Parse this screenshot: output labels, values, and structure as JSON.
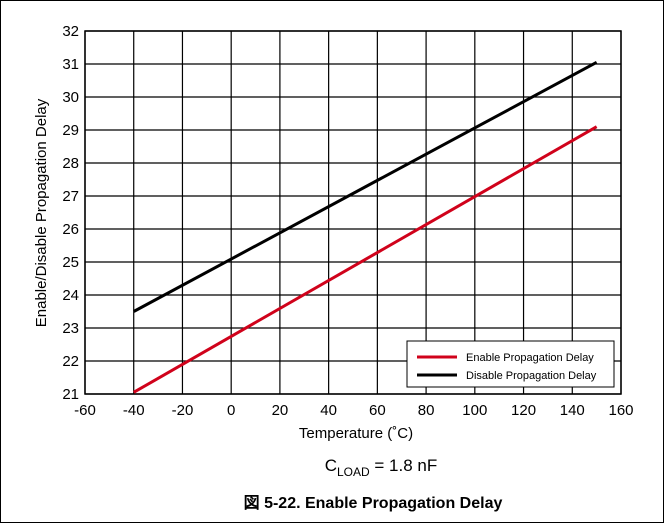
{
  "chart_data": {
    "type": "line",
    "xlabel": "Temperature (˚C)",
    "ylabel": "Enable/Disable Propagation Delay",
    "xlim": [
      -60,
      160
    ],
    "ylim": [
      21,
      32
    ],
    "x_ticks": [
      -60,
      -40,
      -20,
      0,
      20,
      40,
      60,
      80,
      100,
      120,
      140,
      160
    ],
    "y_ticks": [
      21,
      22,
      23,
      24,
      25,
      26,
      27,
      28,
      29,
      30,
      31,
      32
    ],
    "grid": true,
    "legend_position": "bottom-right",
    "series": [
      {
        "name": "Enable Propagation Delay",
        "color": "#d0021b",
        "x": [
          -40,
          150
        ],
        "y": [
          21.05,
          29.1
        ]
      },
      {
        "name": "Disable Propagation Delay",
        "color": "#000000",
        "x": [
          -40,
          150
        ],
        "y": [
          23.5,
          31.05
        ]
      }
    ],
    "annotation": {
      "main": "C",
      "sub": "LOAD",
      "rest": " = 1.8 nF"
    }
  },
  "caption": "図 5-22. Enable Propagation Delay"
}
